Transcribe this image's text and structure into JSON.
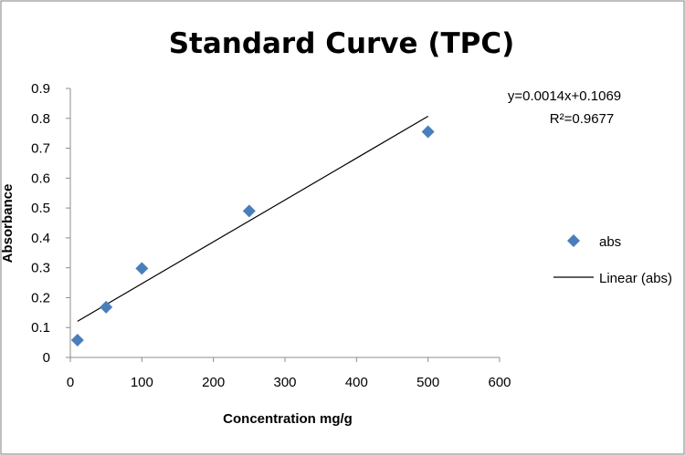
{
  "chart_data": {
    "type": "scatter",
    "title": "Standard Curve (TPC)",
    "xlabel": "Concentration mg/g",
    "ylabel": "Absorbance",
    "xlim": [
      0,
      600
    ],
    "ylim": [
      0,
      0.9
    ],
    "xticks": [
      "0",
      "100",
      "200",
      "300",
      "400",
      "500",
      "600"
    ],
    "yticks": [
      "0",
      "0.1",
      "0.2",
      "0.3",
      "0.4",
      "0.5",
      "0.6",
      "0.7",
      "0.8",
      "0.9"
    ],
    "grid": false,
    "legend_position": "right",
    "series": [
      {
        "name": "abs",
        "marker": "diamond",
        "color": "#4a7ebb",
        "x": [
          10,
          50,
          100,
          250,
          500
        ],
        "y": [
          0.058,
          0.168,
          0.298,
          0.49,
          0.755
        ]
      }
    ],
    "trendline": {
      "name": "Linear (abs)",
      "type": "linear",
      "slope": 0.0014,
      "intercept": 0.1069,
      "x_range": [
        10,
        500
      ],
      "color": "#000000",
      "equation_label": "y=0.0014x+0.1069",
      "r2_label": "R²=0.9677"
    }
  },
  "legend": {
    "items": [
      {
        "label": "abs"
      },
      {
        "label": "Linear (abs)"
      }
    ]
  }
}
